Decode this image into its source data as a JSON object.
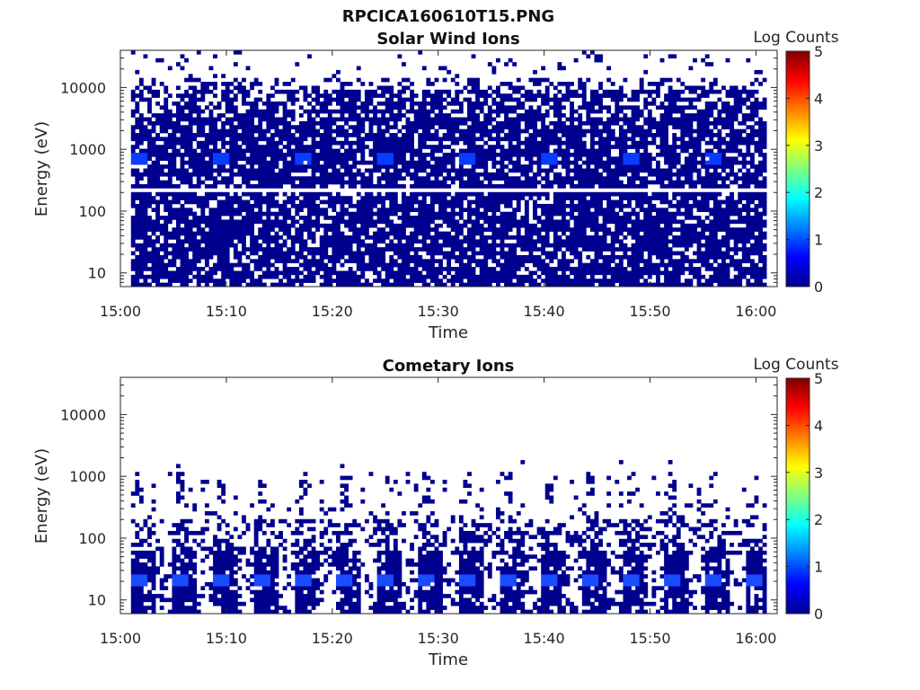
{
  "figure": {
    "title": "RPCICA160610T15.PNG"
  },
  "chart_data": [
    {
      "type": "heatmap",
      "title": "Solar Wind Ions",
      "xlabel": "Time",
      "ylabel": "Energy (eV)",
      "x_range": [
        "15:00",
        "16:02"
      ],
      "x_ticks": [
        "15:00",
        "15:10",
        "15:20",
        "15:30",
        "15:40",
        "15:50",
        "16:00"
      ],
      "y_scale": "log",
      "y_range": [
        6,
        40000
      ],
      "y_ticks": [
        {
          "value": 10,
          "label": "10"
        },
        {
          "value": 100,
          "label": "100"
        },
        {
          "value": 1000,
          "label": "1000"
        },
        {
          "value": 10000,
          "label": "10000"
        }
      ],
      "colorbar": {
        "label": "Log Counts",
        "range": [
          0,
          5
        ],
        "ticks": [
          "0",
          "1",
          "2",
          "3",
          "4",
          "5"
        ],
        "colormap": "jet"
      },
      "data_start": "15:01",
      "data_end": "16:01",
      "features": [
        {
          "description": "dense low-count coverage",
          "energy_range": [
            6,
            12000
          ],
          "log_counts": 0.1
        },
        {
          "description": "enhanced solar wind band",
          "energy": 700,
          "log_counts": 0.8
        },
        {
          "description": "data gap line",
          "energy": 200
        }
      ]
    },
    {
      "type": "heatmap",
      "title": "Cometary Ions",
      "xlabel": "Time",
      "ylabel": "Energy (eV)",
      "x_range": [
        "15:00",
        "16:02"
      ],
      "x_ticks": [
        "15:00",
        "15:10",
        "15:20",
        "15:30",
        "15:40",
        "15:50",
        "16:00"
      ],
      "y_scale": "log",
      "y_range": [
        6,
        40000
      ],
      "y_ticks": [
        {
          "value": 10,
          "label": "10"
        },
        {
          "value": 100,
          "label": "100"
        },
        {
          "value": 1000,
          "label": "1000"
        },
        {
          "value": 10000,
          "label": "10000"
        }
      ],
      "colorbar": {
        "label": "Log Counts",
        "range": [
          0,
          5
        ],
        "ticks": [
          "0",
          "1",
          "2",
          "3",
          "4",
          "5"
        ],
        "colormap": "jet"
      },
      "data_start": "15:01",
      "data_end": "16:01",
      "features": [
        {
          "description": "dense low-energy coverage",
          "energy_range": [
            6,
            200
          ],
          "log_counts": 0.1
        },
        {
          "description": "enhanced cometary band",
          "energy": 20,
          "log_counts": 0.8
        },
        {
          "description": "sparse patches",
          "energy_range": [
            400,
            1000
          ],
          "log_counts": 0.05
        }
      ]
    }
  ]
}
